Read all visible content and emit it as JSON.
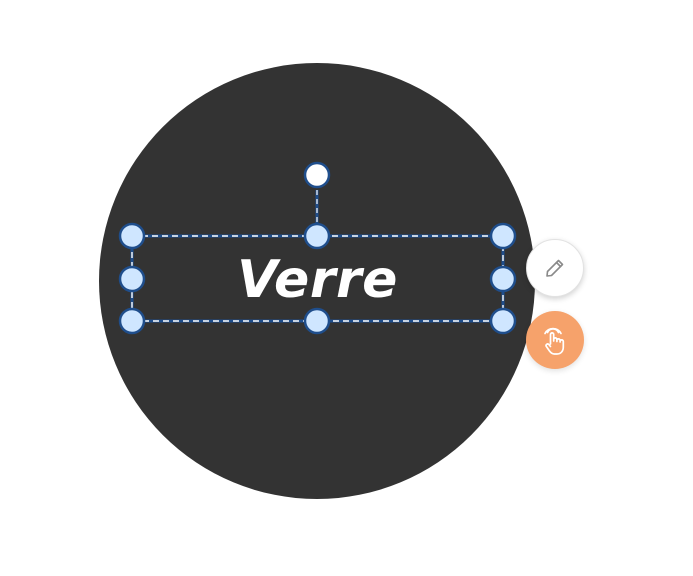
{
  "shape": {
    "label": "Verre",
    "fill_color": "#333333",
    "text_color": "#ffffff"
  },
  "selection": {
    "stroke_color": "#1f4e8c",
    "handle_fill": "#cfe6ff",
    "rotation_handle_fill": "#ffffff"
  },
  "actions": {
    "edit": {
      "icon": "pencil-icon",
      "background": "#ffffff"
    },
    "interact": {
      "icon": "hand-pointer-icon",
      "background": "#f6a26b"
    }
  }
}
